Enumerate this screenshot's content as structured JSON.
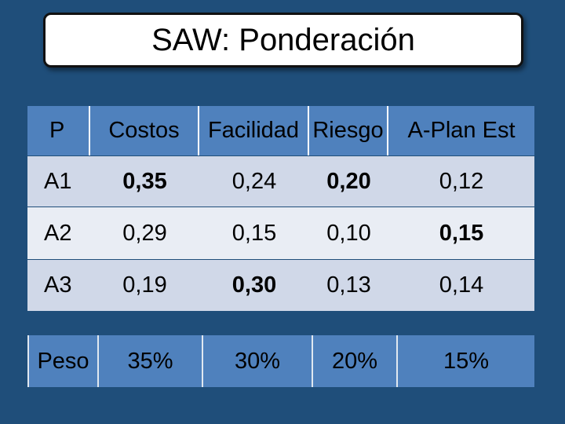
{
  "title": "SAW: Ponderación",
  "header": [
    "P",
    "Costos",
    "Facilidad",
    "Riesgo",
    "A-Plan Est"
  ],
  "rows": [
    {
      "label": "A1",
      "values": [
        "0,35",
        "0,24",
        "0,20",
        "0,12"
      ]
    },
    {
      "label": "A2",
      "values": [
        "0,29",
        "0,15",
        "0,10",
        "0,15"
      ]
    },
    {
      "label": "A3",
      "values": [
        "0,19",
        "0,30",
        "0,13",
        "0,14"
      ]
    }
  ],
  "weights": {
    "label": "Peso",
    "values": [
      "35%",
      "30%",
      "20%",
      "15%"
    ]
  },
  "colors": {
    "background": "#1f4e7a",
    "header": "#4f81bd",
    "row_dark": "#d0d8e8",
    "row_light": "#e9edf4"
  }
}
